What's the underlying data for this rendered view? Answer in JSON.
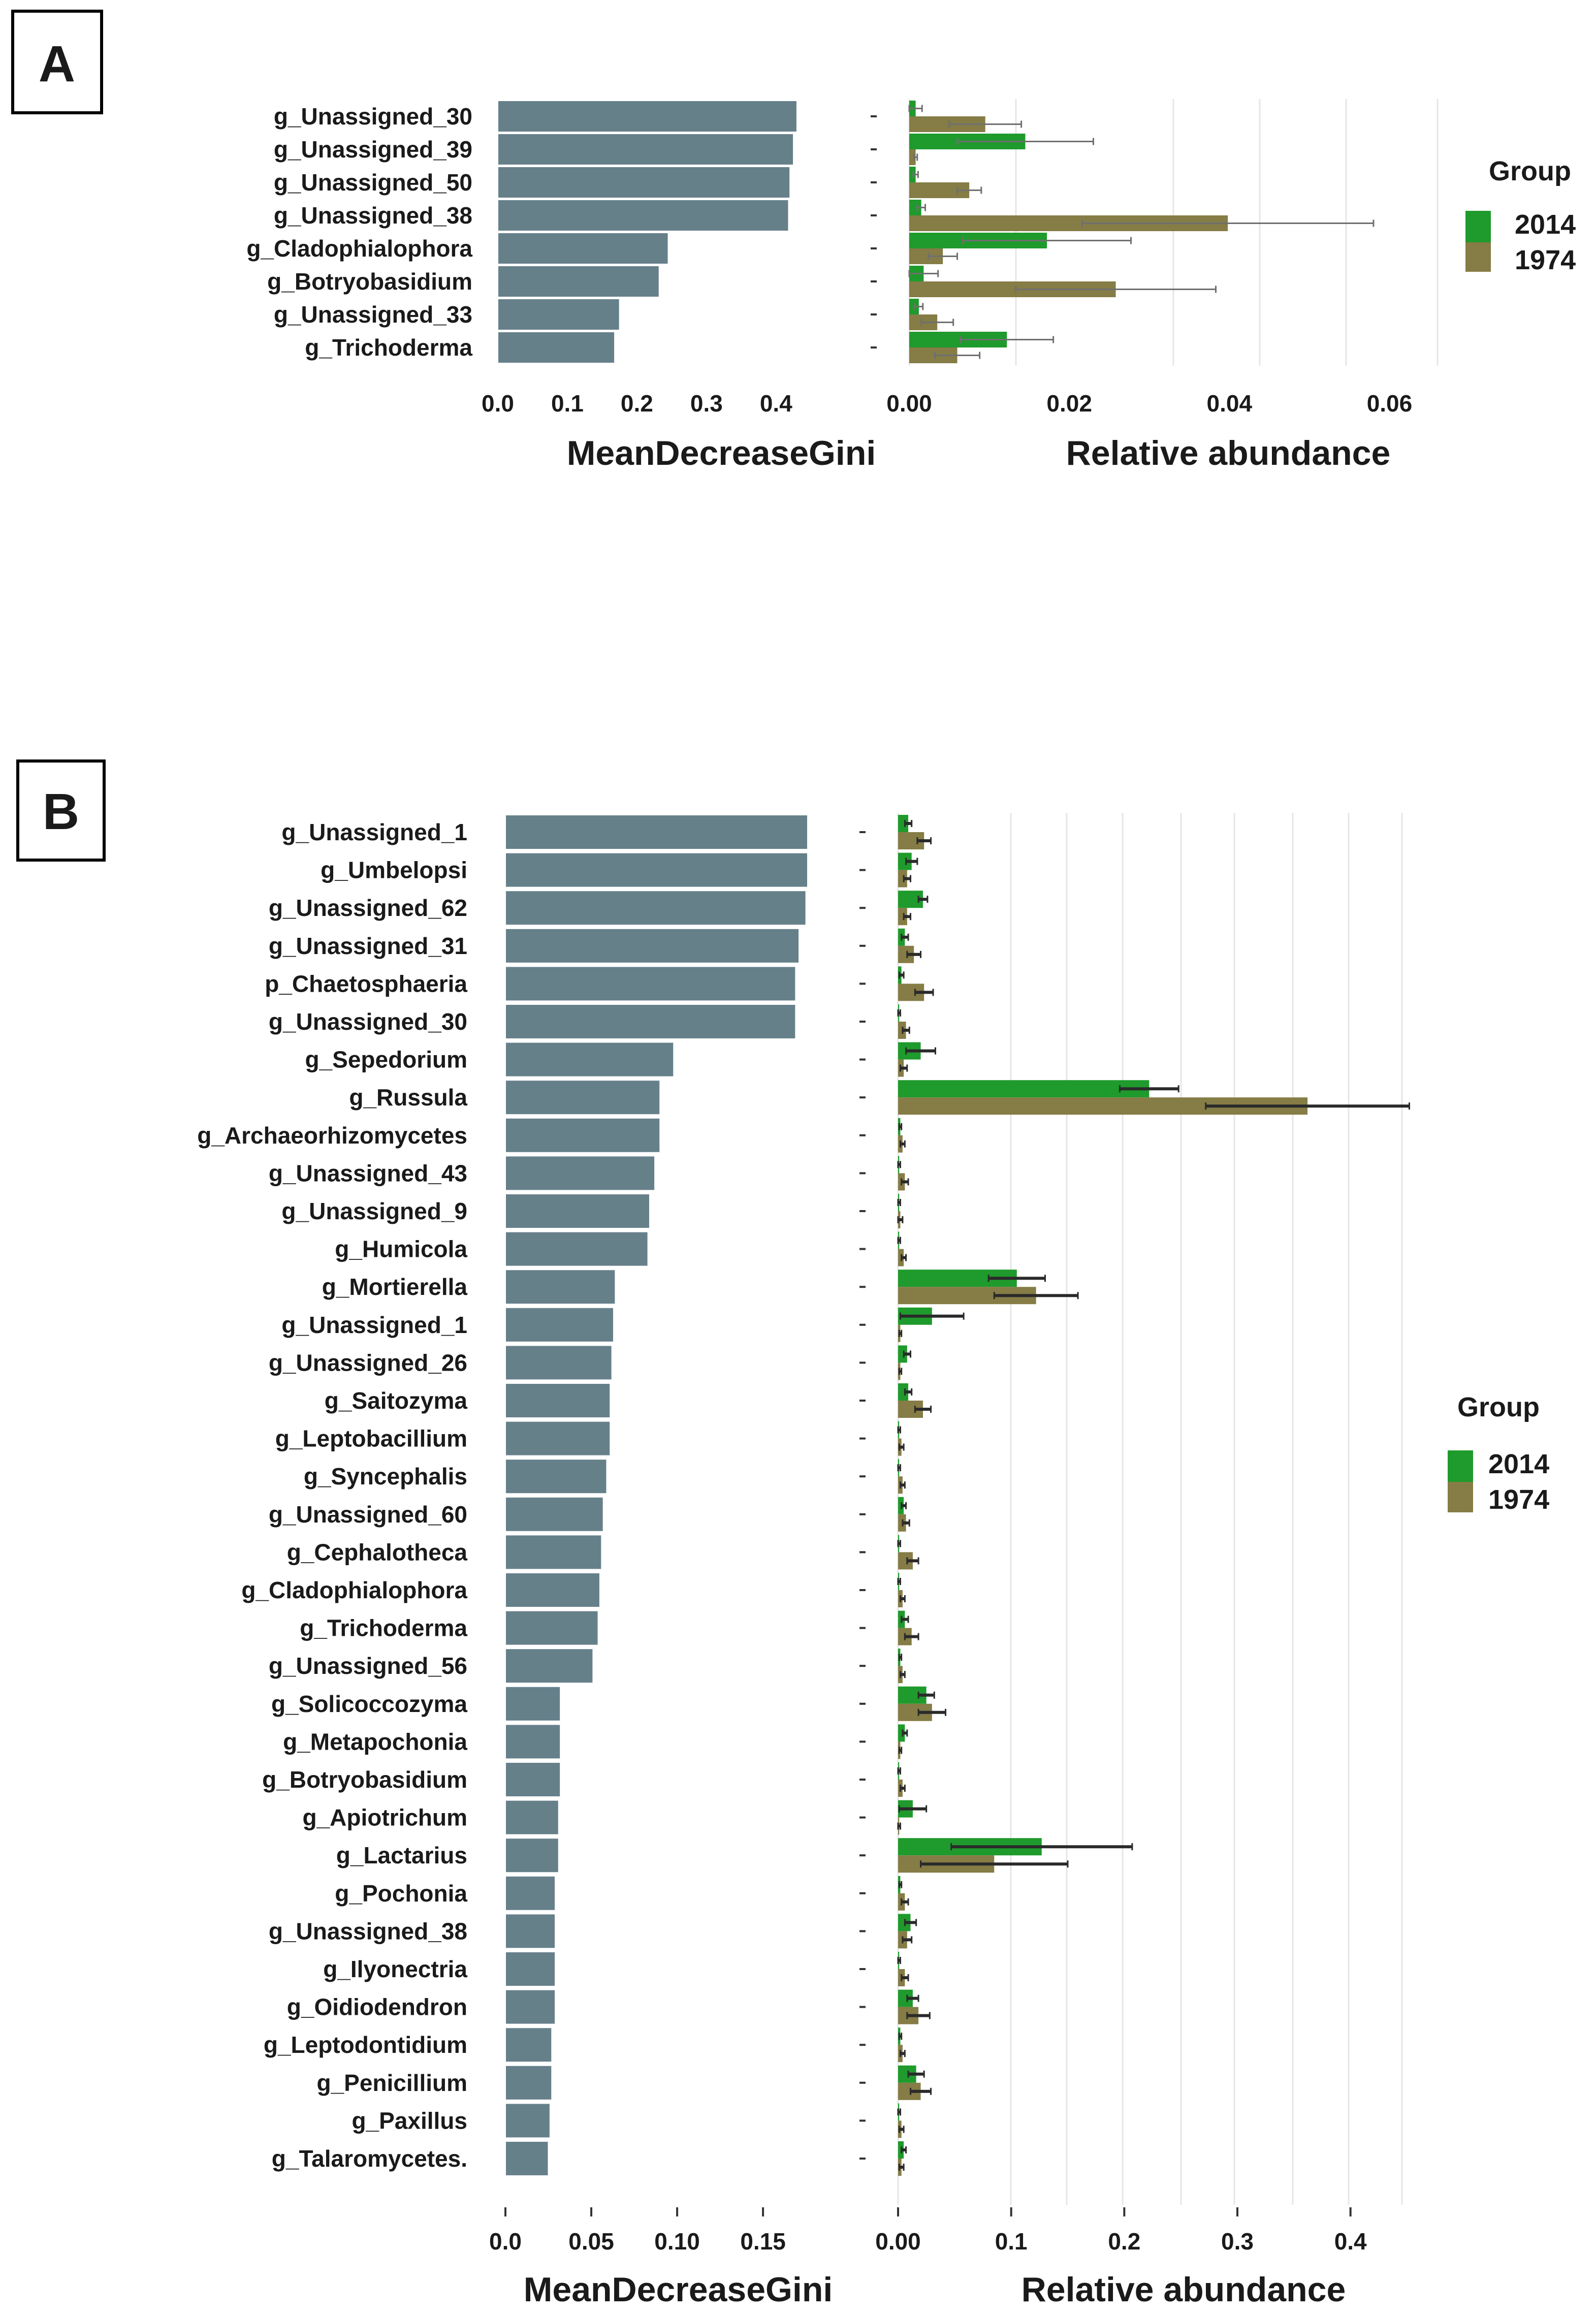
{
  "legend_title": "Group",
  "colors": {
    "c2014": "#1f9a2c",
    "c1974": "#857c46",
    "gini": "#66808a",
    "err": "#4a4a4a"
  },
  "chart_data": [
    {
      "panel": "A",
      "type": "bar",
      "title": "",
      "categories": [
        "g_Unassigned_30",
        "g_Unassigned_39",
        "g_Unassigned_50",
        "g_Unassigned_38",
        "g_Cladophialophora",
        "g_Botryobasidium",
        "g_Unassigned_33",
        "g_Trichoderma"
      ],
      "gini": {
        "xlabel": "MeanDecreaseGini",
        "xlim": [
          0,
          0.46
        ],
        "ticks": [
          0.0,
          0.1,
          0.2,
          0.3,
          0.4
        ],
        "tick_labels": [
          "0.0",
          "0.1",
          "0.2",
          "0.3",
          "0.4"
        ],
        "values": [
          0.43,
          0.425,
          0.42,
          0.418,
          0.245,
          0.232,
          0.175,
          0.168
        ]
      },
      "abundance": {
        "xlabel": "Relative abundance",
        "xlim": [
          0,
          0.066
        ],
        "ticks": [
          0.0,
          0.02,
          0.04,
          0.06
        ],
        "tick_labels": [
          "0.00",
          "0.02",
          "0.04",
          "0.06"
        ],
        "series": [
          {
            "name": "2014",
            "values": [
              0.0008,
              0.0145,
              0.0008,
              0.0015,
              0.0172,
              0.0018,
              0.0012,
              0.0122
            ],
            "errors": [
              0.0008,
              0.0085,
              0.0003,
              0.0005,
              0.0105,
              0.0018,
              0.0005,
              0.0058
            ]
          },
          {
            "name": "1974",
            "values": [
              0.0095,
              0.0008,
              0.0075,
              0.0398,
              0.0042,
              0.0258,
              0.0035,
              0.006
            ],
            "errors": [
              0.0045,
              0.0002,
              0.0015,
              0.0182,
              0.0018,
              0.0125,
              0.002,
              0.0028
            ]
          }
        ]
      },
      "legend": [
        "2014",
        "1974"
      ]
    },
    {
      "panel": "B",
      "type": "bar",
      "title": "",
      "categories": [
        "g_Unassigned_1",
        "g_Umbelopsi",
        "g_Unassigned_62",
        "g_Unassigned_31",
        "p_Chaetosphaeria",
        "g_Unassigned_30",
        "g_Sepedorium",
        "g_Russula",
        "g_Archaeorhizomycetes",
        "g_Unassigned_43",
        "g_Unassigned_9",
        "g_Humicola",
        "g_Mortierella",
        "g_Unassigned_1",
        "g_Unassigned_26",
        "g_Saitozyma",
        "g_Leptobacillium",
        "g_Syncephalis",
        "g_Unassigned_60",
        "g_Cephalotheca",
        "g_Cladophialophora",
        "g_Trichoderma",
        "g_Unassigned_56",
        "g_Solicoccozyma",
        "g_Metapochonia",
        "g_Botryobasidium",
        "g_Apiotrichum",
        "g_Lactarius",
        "g_Pochonia",
        "g_Unassigned_38",
        "g_Ilyonectria",
        "g_Oidiodendron",
        "g_Leptodontidium",
        "g_Penicillium",
        "g_Paxillus",
        "g_Talaromycetes."
      ],
      "gini": {
        "xlabel": "MeanDecreaseGini",
        "xlim": [
          0,
          0.176
        ],
        "ticks": [
          0.0,
          0.05,
          0.1,
          0.15
        ],
        "tick_labels": [
          "0.0",
          "0.05",
          "0.10",
          "0.15"
        ],
        "values": [
          0.176,
          0.176,
          0.175,
          0.171,
          0.169,
          0.169,
          0.098,
          0.09,
          0.09,
          0.087,
          0.084,
          0.083,
          0.064,
          0.063,
          0.062,
          0.061,
          0.061,
          0.059,
          0.057,
          0.056,
          0.055,
          0.054,
          0.051,
          0.032,
          0.032,
          0.032,
          0.031,
          0.031,
          0.029,
          0.029,
          0.029,
          0.029,
          0.027,
          0.027,
          0.026,
          0.025
        ]
      },
      "abundance": {
        "xlabel": "Relative abundance",
        "xlim": [
          0,
          0.45
        ],
        "ticks": [
          0.0,
          0.1,
          0.2,
          0.3,
          0.4
        ],
        "tick_labels": [
          "0.00",
          "0.1",
          "0.2",
          "0.3",
          "0.4"
        ],
        "series": [
          {
            "name": "2014",
            "values": [
              0.009,
              0.012,
              0.022,
              0.006,
              0.003,
              0.001,
              0.02,
              0.222,
              0.002,
              0.001,
              0.001,
              0.001,
              0.105,
              0.03,
              0.008,
              0.009,
              0.001,
              0.001,
              0.005,
              0.001,
              0.001,
              0.006,
              0.002,
              0.025,
              0.006,
              0.001,
              0.013,
              0.127,
              0.002,
              0.011,
              0.001,
              0.013,
              0.002,
              0.016,
              0.001,
              0.005
            ],
            "errors": [
              0.003,
              0.005,
              0.004,
              0.003,
              0.002,
              0.001,
              0.013,
              0.026,
              0.001,
              0.001,
              0.001,
              0.001,
              0.025,
              0.028,
              0.003,
              0.003,
              0.001,
              0.001,
              0.002,
              0.001,
              0.001,
              0.003,
              0.001,
              0.007,
              0.002,
              0.001,
              0.012,
              0.08,
              0.001,
              0.005,
              0.001,
              0.005,
              0.001,
              0.007,
              0.001,
              0.002
            ]
          },
          {
            "name": "1974",
            "values": [
              0.023,
              0.008,
              0.008,
              0.014,
              0.023,
              0.007,
              0.005,
              0.362,
              0.004,
              0.006,
              0.002,
              0.005,
              0.122,
              0.002,
              0.002,
              0.022,
              0.003,
              0.004,
              0.007,
              0.013,
              0.004,
              0.012,
              0.004,
              0.03,
              0.002,
              0.004,
              0.001,
              0.085,
              0.006,
              0.008,
              0.006,
              0.018,
              0.004,
              0.02,
              0.003,
              0.003
            ],
            "errors": [
              0.006,
              0.003,
              0.003,
              0.006,
              0.008,
              0.003,
              0.003,
              0.09,
              0.002,
              0.003,
              0.002,
              0.002,
              0.037,
              0.001,
              0.001,
              0.007,
              0.002,
              0.002,
              0.003,
              0.005,
              0.002,
              0.006,
              0.002,
              0.012,
              0.001,
              0.002,
              0.001,
              0.065,
              0.003,
              0.004,
              0.003,
              0.01,
              0.002,
              0.009,
              0.002,
              0.002
            ]
          }
        ]
      },
      "legend": [
        "2014",
        "1974"
      ]
    }
  ]
}
